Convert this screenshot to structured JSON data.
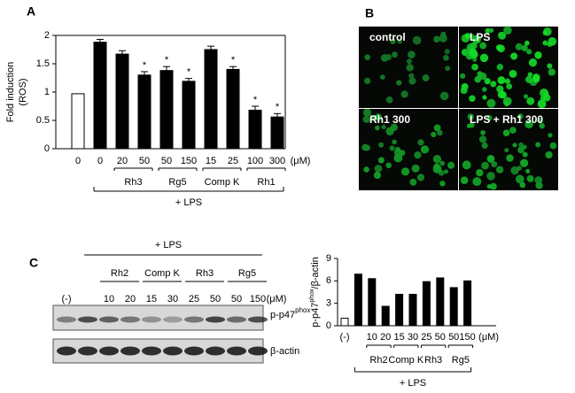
{
  "panel_labels": [
    "A",
    "B",
    "C"
  ],
  "chart_data": [
    {
      "type": "bar",
      "ylabel": [
        "Fold induction",
        "(ROS)"
      ],
      "categories": [
        "0",
        "0",
        "20",
        "50",
        "50",
        "150",
        "15",
        "25",
        "100",
        "300"
      ],
      "x_unit": "(μM)",
      "values": [
        0.97,
        1.88,
        1.67,
        1.3,
        1.38,
        1.19,
        1.75,
        1.4,
        0.68,
        0.56
      ],
      "errors": [
        null,
        0.05,
        0.06,
        0.06,
        0.07,
        0.05,
        0.06,
        0.05,
        0.07,
        0.06
      ],
      "colors": [
        "#ffffff",
        "#000000",
        "#000000",
        "#000000",
        "#000000",
        "#000000",
        "#000000",
        "#000000",
        "#000000",
        "#000000"
      ],
      "annotations": [
        {
          "index": 3,
          "text": "*"
        },
        {
          "index": 4,
          "text": "*"
        },
        {
          "index": 5,
          "text": "*"
        },
        {
          "index": 7,
          "text": "*"
        },
        {
          "index": 8,
          "text": "*"
        },
        {
          "index": 9,
          "text": "*"
        }
      ],
      "groups": [
        {
          "name": "Rh3",
          "span": [
            2,
            3
          ]
        },
        {
          "name": "Rg5",
          "span": [
            4,
            5
          ]
        },
        {
          "name": "Comp K",
          "span": [
            6,
            7
          ]
        },
        {
          "name": "Rh1",
          "span": [
            8,
            9
          ]
        }
      ],
      "treatment": {
        "name": "+ LPS",
        "span": [
          1,
          9
        ]
      },
      "ylim": [
        0,
        2
      ],
      "yticks": [
        0,
        0.5,
        1,
        1.5,
        2
      ]
    },
    {
      "type": "bar",
      "ylabel": [
        "p-p47",
        "phox",
        "/β-actin"
      ],
      "categories": [
        "(-)",
        null,
        "10",
        "20",
        "15",
        "30",
        "25",
        "50",
        "50",
        "150"
      ],
      "x_unit": "(μM)",
      "values": [
        1,
        6.9,
        6.3,
        2.6,
        4.2,
        4.2,
        5.9,
        6.4,
        5.1,
        6.0
      ],
      "colors": [
        "#ffffff",
        "#000000",
        "#000000",
        "#000000",
        "#000000",
        "#000000",
        "#000000",
        "#000000",
        "#000000",
        "#000000"
      ],
      "groups": [
        {
          "name": "Rh2",
          "span": [
            2,
            3
          ]
        },
        {
          "name": "Comp K",
          "span": [
            4,
            5
          ]
        },
        {
          "name": "Rh3",
          "span": [
            6,
            7
          ]
        },
        {
          "name": "Rg5",
          "span": [
            8,
            9
          ]
        }
      ],
      "treatment": {
        "name": "+ LPS",
        "span": [
          1,
          9
        ]
      },
      "ylim": [
        0,
        9
      ],
      "yticks": [
        0,
        3,
        6,
        9
      ]
    }
  ],
  "micrographs": {
    "labels": [
      "control",
      "LPS",
      "Rh1 300",
      "LPS + Rh1 300"
    ]
  },
  "blot": {
    "treatment": "+ LPS",
    "groups": [
      {
        "name": "Rh2",
        "span": [
          2,
          3
        ]
      },
      {
        "name": "Comp K",
        "span": [
          4,
          5
        ]
      },
      {
        "name": "Rh3",
        "span": [
          6,
          7
        ]
      },
      {
        "name": "Rg5",
        "span": [
          8,
          9
        ]
      }
    ],
    "lanes": [
      "(-)",
      null,
      "10",
      "20",
      "15",
      "30",
      "25",
      "50",
      "50",
      "150"
    ],
    "unit": "(μM)",
    "bands": [
      [
        "p-p47",
        "phox"
      ],
      [
        "β-actin"
      ]
    ]
  }
}
